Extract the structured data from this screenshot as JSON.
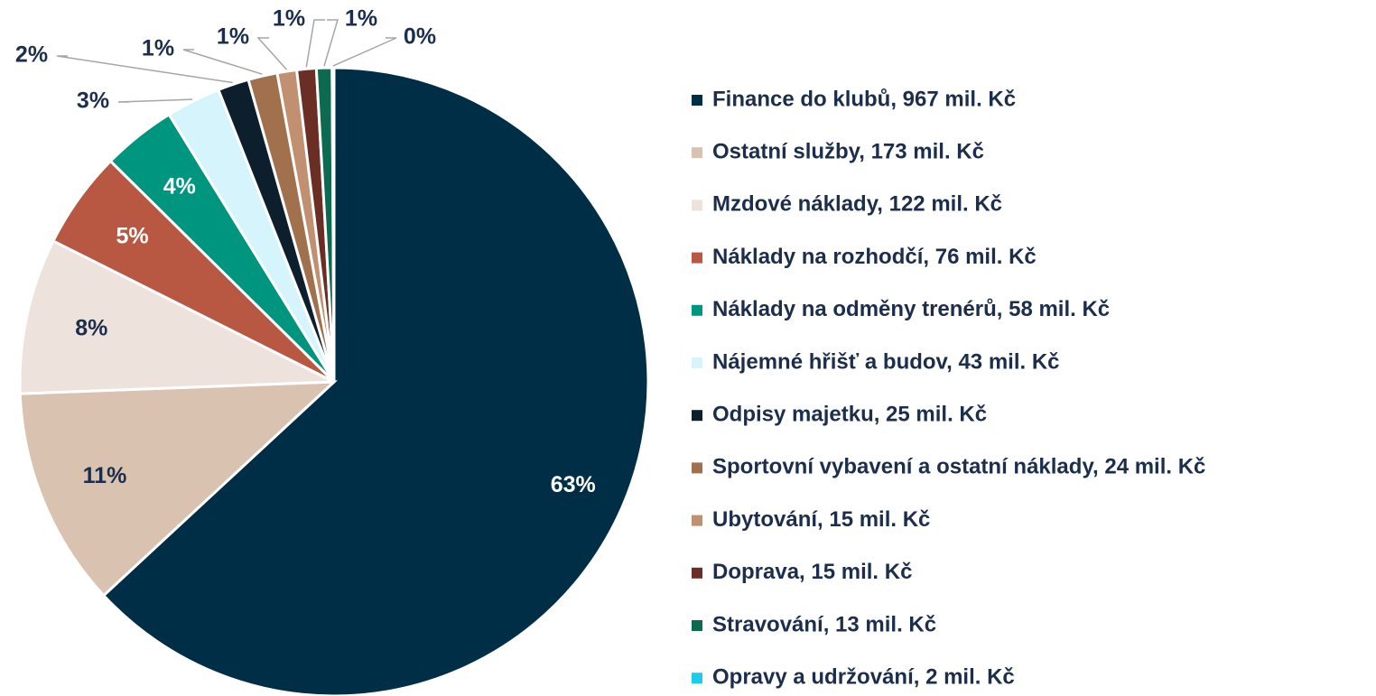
{
  "chart_data": {
    "type": "pie",
    "categories": [
      "Finance do klubů, 967 mil. Kč",
      "Ostatní služby, 173 mil. Kč",
      "Mzdové náklady, 122 mil. Kč",
      "Náklady na rozhodčí, 76 mil. Kč",
      "Náklady na odměny trenérů, 58 mil. Kč",
      "Nájemné hřišť a budov, 43 mil. Kč",
      "Odpisy majetku, 25 mil. Kč",
      "Sportovní vybavení a ostatní náklady, 24 mil. Kč",
      "Ubytování, 15 mil. Kč",
      "Doprava, 15 mil. Kč",
      "Stravování, 13 mil. Kč",
      "Opravy a udržování, 2 mil. Kč"
    ],
    "values": [
      63.1,
      11.3,
      8.0,
      5.0,
      3.8,
      2.8,
      1.6,
      1.5,
      1.0,
      1.0,
      0.8,
      0.1
    ],
    "value_labels": [
      "63%",
      "11%",
      "8%",
      "5%",
      "4%",
      "3%",
      "2%",
      "1%",
      "1%",
      "1%",
      "1%",
      "0%"
    ],
    "colors": [
      "#002e47",
      "#d9c3b0",
      "#ede3dc",
      "#b85843",
      "#00957f",
      "#d5f4fc",
      "#0d1f2d",
      "#a0714c",
      "#c09070",
      "#6b2e25",
      "#0b6a4f",
      "#1ccbe9"
    ],
    "legend": "right"
  }
}
